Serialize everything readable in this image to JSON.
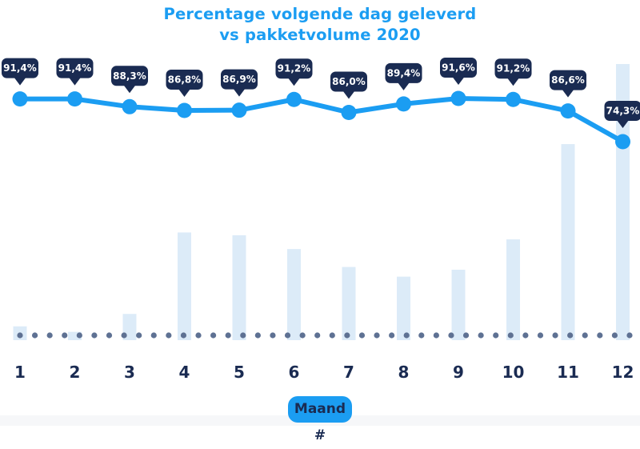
{
  "title": {
    "line1": "Percentage volgende dag geleverd",
    "line2": "vs pakketvolume 2020"
  },
  "x_axis": {
    "badge_label": "Maand #"
  },
  "colors": {
    "accent_blue": "#1b9df2",
    "navy": "#1a2b52",
    "bar_fill": "#dcebf8",
    "dot_fill": "#5e7193",
    "tooltip_bg": "#1a2b52",
    "tooltip_text": "#ffffff",
    "footer_strip": "#f6f7f9"
  },
  "chart_data": {
    "type": "line",
    "subtype": "combo line over volume bars",
    "title": "Percentage volgende dag geleverd vs pakketvolume 2020",
    "categories": [
      "1",
      "2",
      "3",
      "4",
      "5",
      "6",
      "7",
      "8",
      "9",
      "10",
      "11",
      "12"
    ],
    "xlabel": "Maand #",
    "ylabel": "",
    "grid": false,
    "legend": false,
    "ylim_line_pct": [
      70,
      95
    ],
    "series": [
      {
        "name": "Percentage volgende dag geleverd",
        "type": "line",
        "unit": "%",
        "values": [
          91.4,
          91.4,
          88.3,
          86.8,
          86.9,
          91.2,
          86.0,
          89.4,
          91.6,
          91.2,
          86.6,
          74.3
        ],
        "labels": [
          "91,4%",
          "91,4%",
          "88,3%",
          "86,8%",
          "86,9%",
          "91,2%",
          "86,0%",
          "89,4%",
          "91,6%",
          "91,2%",
          "86,6%",
          "74,3%"
        ]
      },
      {
        "name": "Pakketvolume 2020",
        "type": "bar",
        "unit": "relative volume index 0-100 (no value axis shown)",
        "values": [
          5,
          3,
          9.5,
          39,
          38,
          33,
          26.5,
          23,
          25.5,
          36.5,
          71,
          100
        ]
      }
    ]
  }
}
